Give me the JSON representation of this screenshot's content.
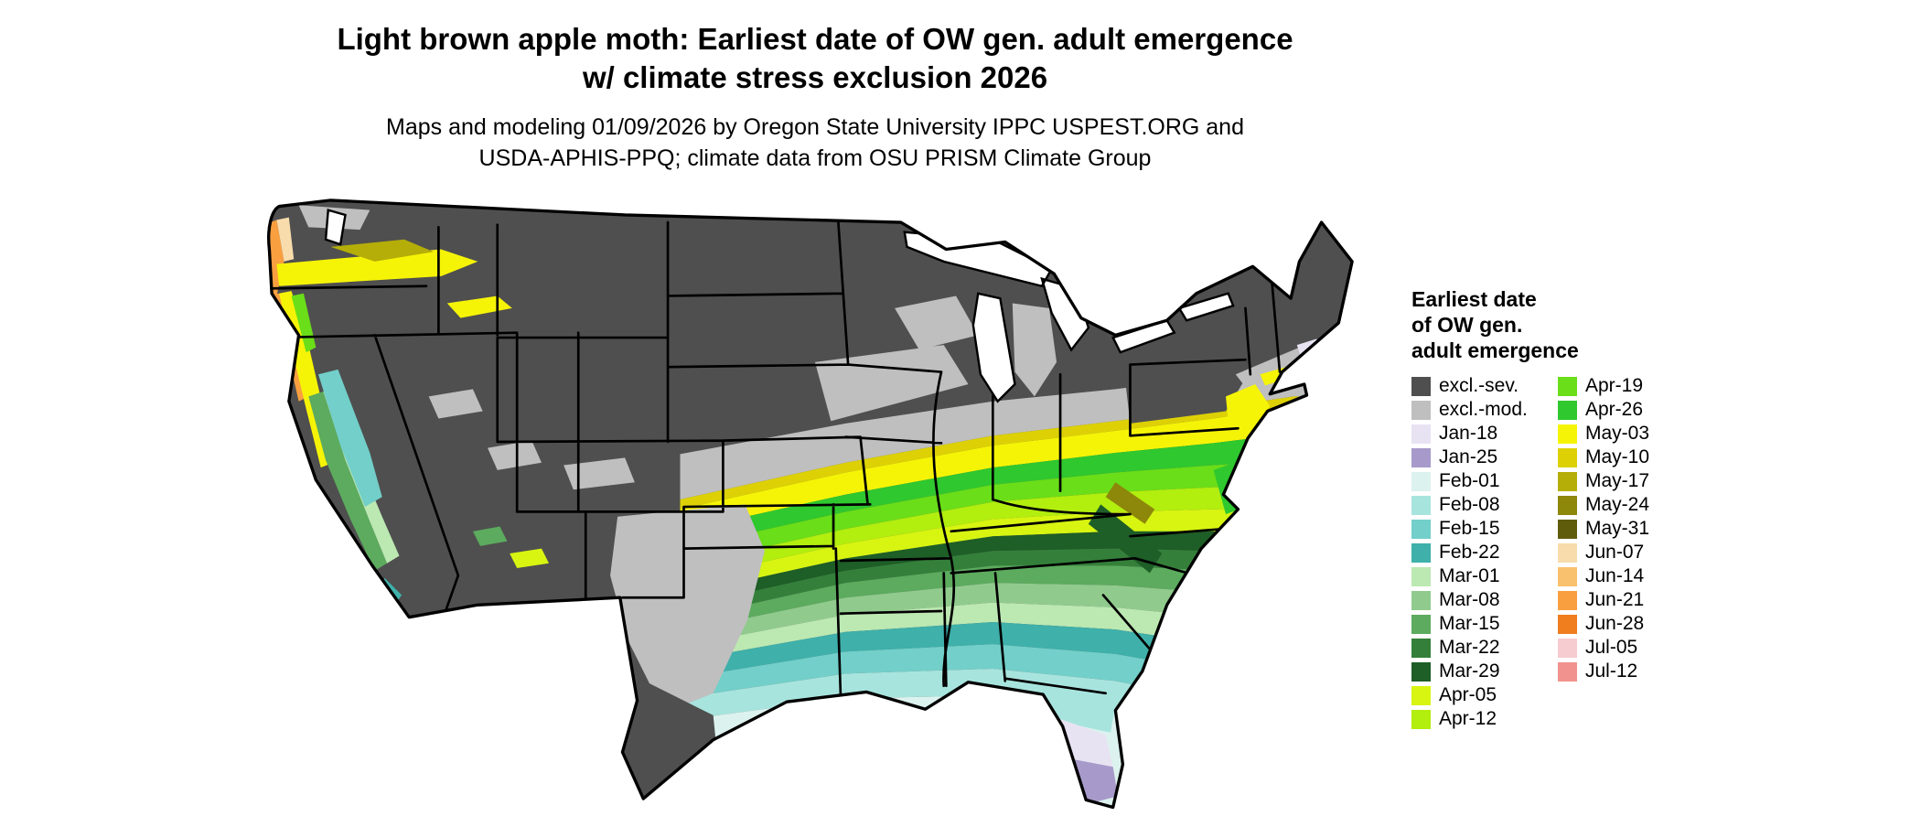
{
  "title": {
    "line1": "Light brown apple moth: Earliest date of OW gen. adult emergence",
    "line2": "w/ climate stress exclusion 2026"
  },
  "subtitle": {
    "line1": "Maps and modeling 01/09/2026 by Oregon State University IPPC USPEST.ORG and",
    "line2": "USDA-APHIS-PPQ; climate data from OSU PRISM Climate Group"
  },
  "legend": {
    "title_line1": "Earliest date",
    "title_line2": "of OW gen.",
    "title_line3": "adult emergence",
    "columns": [
      [
        {
          "label": "excl.-sev.",
          "color_key": "excl_sev"
        },
        {
          "label": "excl.-mod.",
          "color_key": "excl_mod"
        },
        {
          "label": "Jan-18",
          "color_key": "jan18"
        },
        {
          "label": "Jan-25",
          "color_key": "jan25"
        },
        {
          "label": "Feb-01",
          "color_key": "feb01"
        },
        {
          "label": "Feb-08",
          "color_key": "feb08"
        },
        {
          "label": "Feb-15",
          "color_key": "feb15"
        },
        {
          "label": "Feb-22",
          "color_key": "feb22"
        },
        {
          "label": "Mar-01",
          "color_key": "mar01"
        },
        {
          "label": "Mar-08",
          "color_key": "mar08"
        },
        {
          "label": "Mar-15",
          "color_key": "mar15"
        },
        {
          "label": "Mar-22",
          "color_key": "mar22"
        },
        {
          "label": "Mar-29",
          "color_key": "mar29"
        },
        {
          "label": "Apr-05",
          "color_key": "apr05"
        },
        {
          "label": "Apr-12",
          "color_key": "apr12"
        }
      ],
      [
        {
          "label": "Apr-19",
          "color_key": "apr19"
        },
        {
          "label": "Apr-26",
          "color_key": "apr26"
        },
        {
          "label": "May-03",
          "color_key": "may03"
        },
        {
          "label": "May-10",
          "color_key": "may10"
        },
        {
          "label": "May-17",
          "color_key": "may17"
        },
        {
          "label": "May-24",
          "color_key": "may24"
        },
        {
          "label": "May-31",
          "color_key": "may31"
        },
        {
          "label": "Jun-07",
          "color_key": "jun07"
        },
        {
          "label": "Jun-14",
          "color_key": "jun14"
        },
        {
          "label": "Jun-21",
          "color_key": "jun21"
        },
        {
          "label": "Jun-28",
          "color_key": "jun28"
        },
        {
          "label": "Jul-05",
          "color_key": "jul05"
        },
        {
          "label": "Jul-12",
          "color_key": "jul12"
        }
      ]
    ]
  },
  "colors": {
    "excl_sev": "#4f4f4f",
    "excl_mod": "#bfbfbf",
    "jan18": "#e8e3f3",
    "jan25": "#a79aca",
    "feb01": "#dcf2ee",
    "feb08": "#a8e4de",
    "feb15": "#72cfc9",
    "feb22": "#3fb0aa",
    "mar01": "#bce8b2",
    "mar08": "#90cb8d",
    "mar15": "#5cab5e",
    "mar22": "#34803a",
    "mar29": "#1e5e27",
    "apr05": "#d7f511",
    "apr12": "#b2ee0e",
    "apr19": "#6ade18",
    "apr26": "#2fc82f",
    "may03": "#f6f406",
    "may10": "#ddd106",
    "may17": "#b5ae08",
    "may24": "#8d870a",
    "may31": "#5f5c0c",
    "jun07": "#f8dcab",
    "jun14": "#f9c06d",
    "jun21": "#f99f40",
    "jun28": "#f07d1e",
    "jul05": "#f6ccd0",
    "jul12": "#f2928e",
    "border": "#000000",
    "water": "#ffffff",
    "background": "#ffffff"
  }
}
